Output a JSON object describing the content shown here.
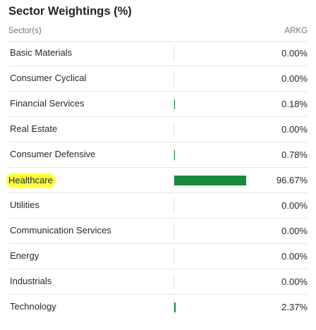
{
  "title": "Sector Weightings (%)",
  "header": {
    "sector": "Sector(s)",
    "fund": "ARKG"
  },
  "bar_color": "#1a8a3d",
  "highlight_color": "#fcfc3c",
  "rows": [
    {
      "label": "Basic Materials",
      "value": "0.00%",
      "pct": 0.0,
      "highlighted": false
    },
    {
      "label": "Consumer Cyclical",
      "value": "0.00%",
      "pct": 0.0,
      "highlighted": false
    },
    {
      "label": "Financial Services",
      "value": "0.18%",
      "pct": 0.18,
      "highlighted": false
    },
    {
      "label": "Real Estate",
      "value": "0.00%",
      "pct": 0.0,
      "highlighted": false
    },
    {
      "label": "Consumer Defensive",
      "value": "0.78%",
      "pct": 0.78,
      "highlighted": false
    },
    {
      "label": "Healthcare",
      "value": "96.67%",
      "pct": 96.67,
      "highlighted": true
    },
    {
      "label": "Utilities",
      "value": "0.00%",
      "pct": 0.0,
      "highlighted": false
    },
    {
      "label": "Communication Services",
      "value": "0.00%",
      "pct": 0.0,
      "highlighted": false
    },
    {
      "label": "Energy",
      "value": "0.00%",
      "pct": 0.0,
      "highlighted": false
    },
    {
      "label": "Industrials",
      "value": "0.00%",
      "pct": 0.0,
      "highlighted": false
    },
    {
      "label": "Technology",
      "value": "2.37%",
      "pct": 2.37,
      "highlighted": false
    }
  ]
}
